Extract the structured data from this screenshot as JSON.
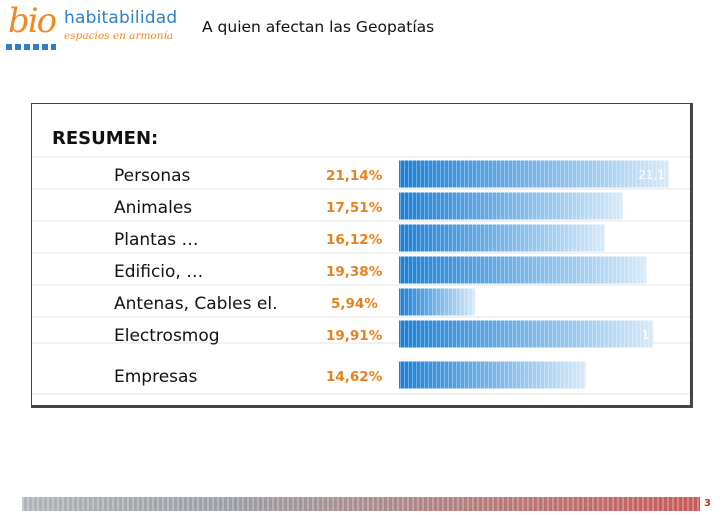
{
  "header": {
    "logo_bio": "bio",
    "logo_word": "habitabilidad",
    "logo_sub": "espacios en armonía",
    "title": "A quien afectan las Geopatías"
  },
  "chart_data": {
    "type": "bar",
    "orientation": "horizontal",
    "title": "RESUMEN:",
    "categories": [
      "Personas",
      "Animales",
      "Plantas …",
      "Edificio, …",
      "Antenas, Cables el.",
      "Electrosmog",
      "Empresas"
    ],
    "values": [
      21.14,
      17.51,
      16.12,
      19.38,
      5.94,
      19.91,
      14.62
    ],
    "value_labels": [
      "21,14%",
      "17,51%",
      "16,12%",
      "19,38%",
      "5,94%",
      "19,91%",
      "14,62%"
    ],
    "bar_overlay_labels": [
      "21,1",
      "",
      "",
      "",
      "",
      "1",
      ""
    ],
    "xlim": [
      0,
      21.14
    ],
    "grid": true,
    "colors": {
      "bar_dark": "#1a7fd6",
      "bar_light": "#d6eafb",
      "value_label": "#e6821e",
      "category_label": "#111111"
    }
  },
  "footer": {
    "page_number": "3"
  }
}
